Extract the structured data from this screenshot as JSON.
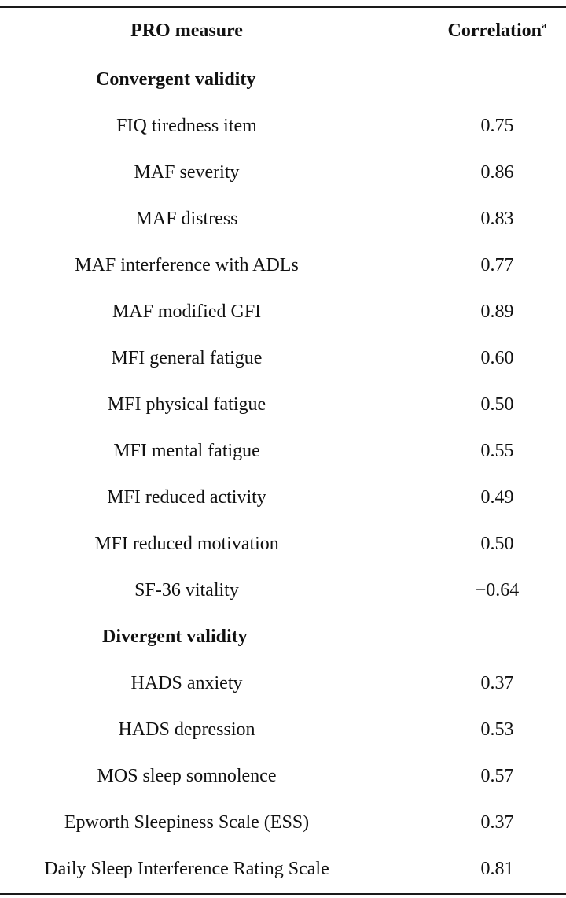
{
  "table": {
    "header": {
      "measure": "PRO measure",
      "correlation": "Correlation",
      "correlation_note": "a"
    },
    "sections": [
      {
        "title": "Convergent validity",
        "rows": [
          {
            "measure": "FIQ tiredness item",
            "correlation": "0.75"
          },
          {
            "measure": "MAF severity",
            "correlation": "0.86"
          },
          {
            "measure": "MAF distress",
            "correlation": "0.83"
          },
          {
            "measure": "MAF interference with ADLs",
            "correlation": "0.77"
          },
          {
            "measure": "MAF modified GFI",
            "correlation": "0.89"
          },
          {
            "measure": "MFI general fatigue",
            "correlation": "0.60"
          },
          {
            "measure": "MFI physical fatigue",
            "correlation": "0.50"
          },
          {
            "measure": "MFI mental fatigue",
            "correlation": "0.55"
          },
          {
            "measure": "MFI reduced activity",
            "correlation": "0.49"
          },
          {
            "measure": "MFI reduced motivation",
            "correlation": "0.50"
          },
          {
            "measure": "SF-36 vitality",
            "correlation": "−0.64"
          }
        ]
      },
      {
        "title": "Divergent validity",
        "rows": [
          {
            "measure": "HADS anxiety",
            "correlation": "0.37"
          },
          {
            "measure": "HADS depression",
            "correlation": "0.53"
          },
          {
            "measure": "MOS sleep somnolence",
            "correlation": "0.57"
          },
          {
            "measure": "Epworth Sleepiness Scale (ESS)",
            "correlation": "0.37"
          },
          {
            "measure": "Daily Sleep Interference Rating Scale",
            "correlation": "0.81"
          }
        ]
      }
    ]
  }
}
